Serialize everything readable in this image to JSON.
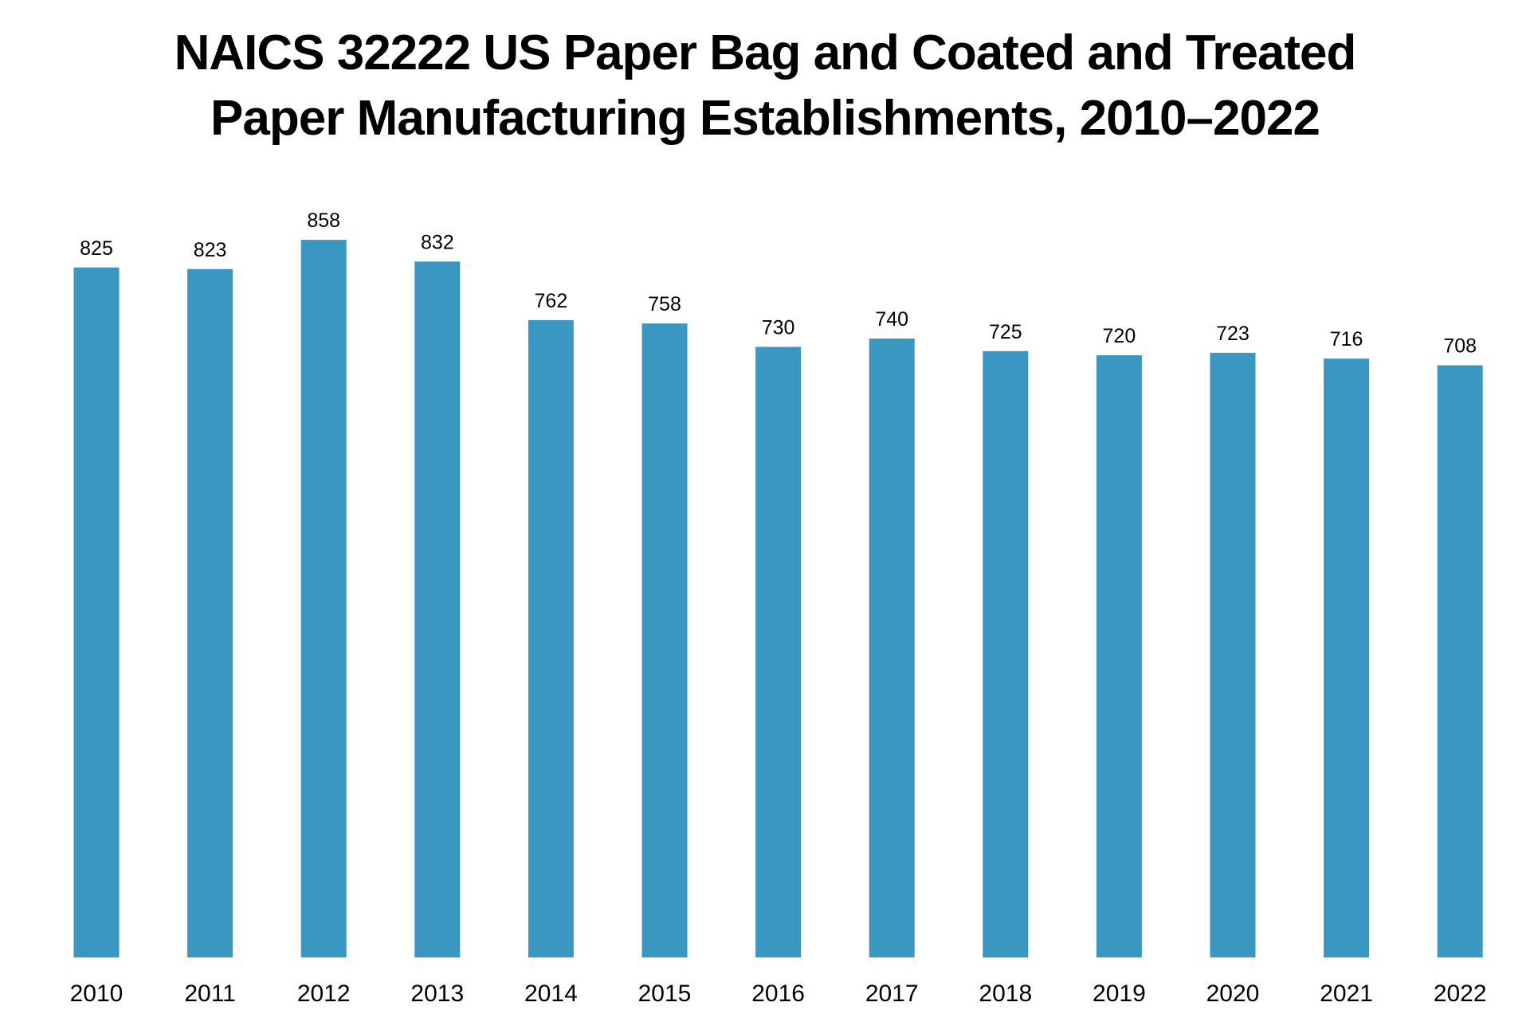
{
  "chart_data": {
    "type": "bar",
    "title_lines": [
      "NAICS 32222 US Paper Bag and Coated and Treated",
      "Paper Manufacturing Establishments, 2010–2022"
    ],
    "categories": [
      "2010",
      "2011",
      "2012",
      "2013",
      "2014",
      "2015",
      "2016",
      "2017",
      "2018",
      "2019",
      "2020",
      "2021",
      "2022"
    ],
    "values": [
      825,
      823,
      858,
      832,
      762,
      758,
      730,
      740,
      725,
      720,
      723,
      716,
      708
    ],
    "xlabel": "",
    "ylabel": "",
    "ylim": [
      0,
      900
    ],
    "grid": false,
    "legend": "none",
    "bar_color": "#3a97c1"
  }
}
